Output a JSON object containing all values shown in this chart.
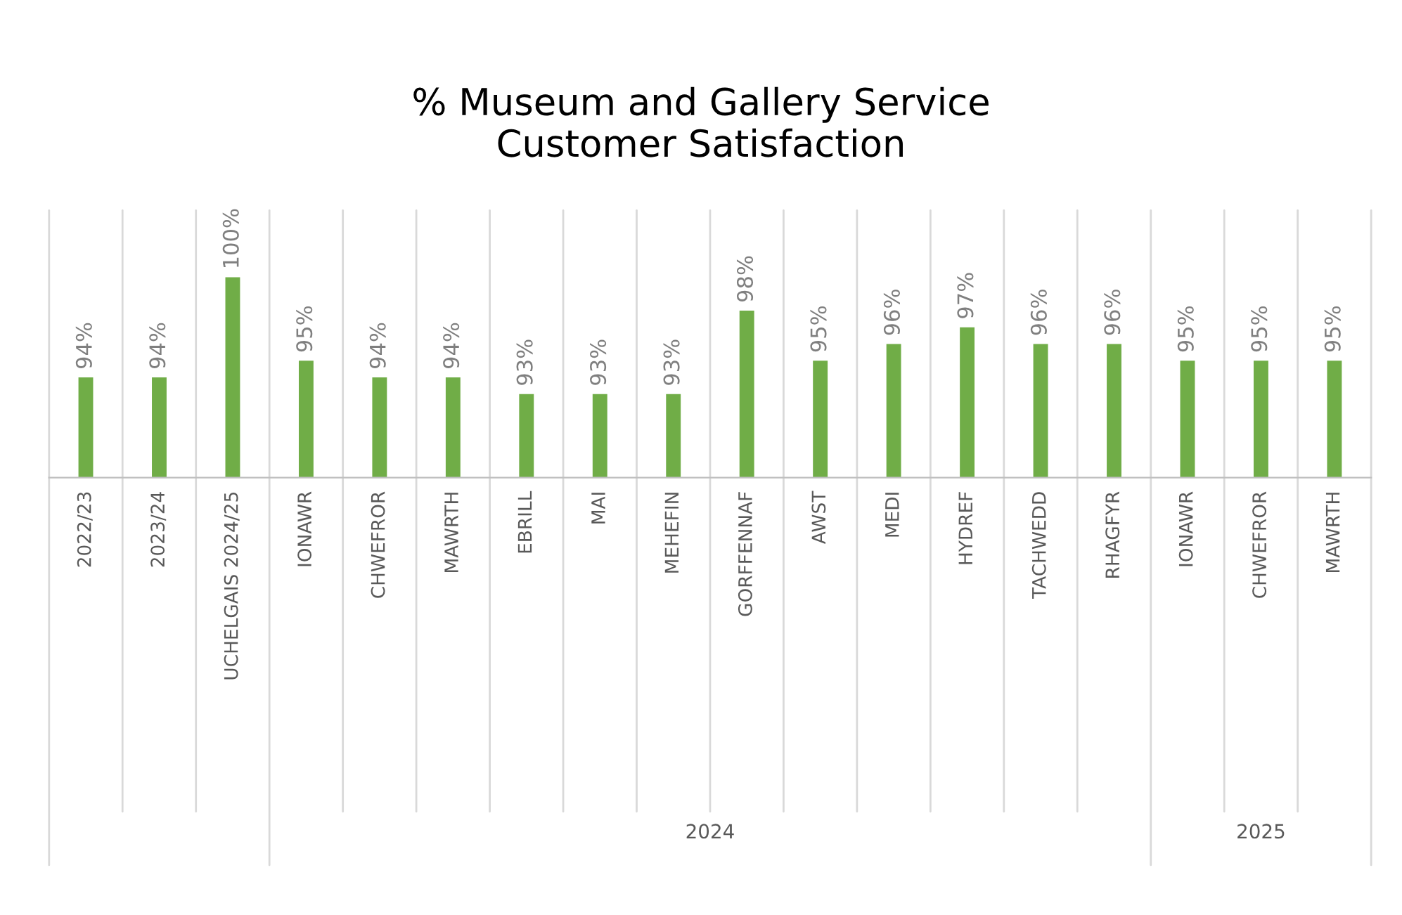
{
  "chart_data": {
    "type": "bar",
    "title": "% Museum and Gallery Service\nCustomer Satisfaction",
    "categories": [
      "2022/23",
      "2023/24",
      "UCHELGAIS 2024/25",
      "IONAWR",
      "CHWEFROR",
      "MAWRTH",
      "EBRILL",
      "MAI",
      "MEHEFIN",
      "GORFFENNAF",
      "AWST",
      "MEDI",
      "HYDREF",
      "TACHWEDD",
      "RHAGFYR",
      "IONAWR",
      "CHWEFROR",
      "MAWRTH"
    ],
    "values": [
      94,
      94,
      100,
      95,
      94,
      94,
      93,
      93,
      93,
      98,
      95,
      96,
      97,
      96,
      96,
      95,
      95,
      95
    ],
    "value_labels": [
      "94%",
      "94%",
      "100%",
      "95%",
      "94%",
      "94%",
      "93%",
      "93%",
      "93%",
      "98%",
      "95%",
      "96%",
      "97%",
      "96%",
      "96%",
      "95%",
      "95%",
      "95%"
    ],
    "color": "#70ad47",
    "ylim": [
      88,
      104
    ],
    "annotations": [
      "2024",
      "2025"
    ]
  }
}
